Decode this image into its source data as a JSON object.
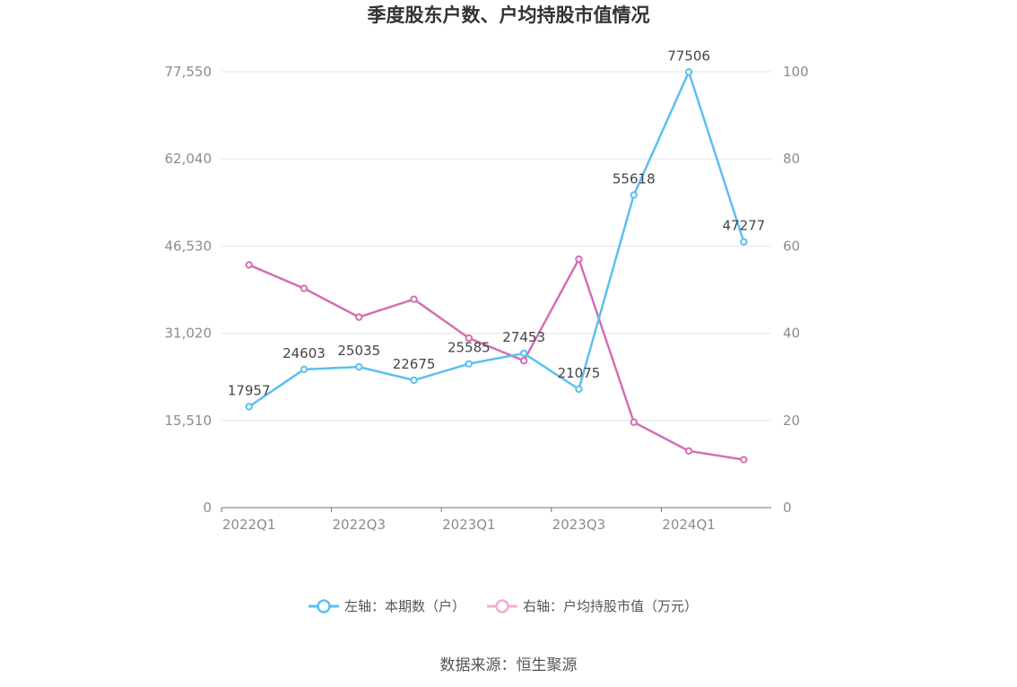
{
  "source_label": "数据来源：恒生聚源",
  "chart_data": {
    "type": "line",
    "title": "季度股东户数、户均持股市值情况",
    "categories": [
      "2022Q1",
      "2022Q2",
      "2022Q3",
      "2022Q4",
      "2023Q1",
      "2023Q2",
      "2023Q3",
      "2023Q4",
      "2024Q1",
      "2024Q2"
    ],
    "x_tick_labels": [
      "2022Q1",
      "2022Q3",
      "2023Q1",
      "2023Q3",
      "2024Q1"
    ],
    "y_left": {
      "range": [
        0,
        77550
      ],
      "ticks": [
        "0",
        "15,510",
        "31,020",
        "46,530",
        "62,040",
        "77,550"
      ]
    },
    "y_right": {
      "range": [
        0,
        100
      ],
      "ticks": [
        "0",
        "20",
        "40",
        "60",
        "80",
        "100"
      ]
    },
    "grid": true,
    "legend_position": "bottom-center",
    "series": [
      {
        "name": "左轴：本期数（户）",
        "axis": "left",
        "color": "#5bc0ef",
        "values": [
          17957,
          24603,
          25035,
          22675,
          25585,
          27453,
          21075,
          55618,
          77506,
          47277
        ],
        "labels": [
          "17957",
          "24603",
          "25035",
          "22675",
          "25585",
          "27453",
          "21075",
          "55618",
          "77506",
          "47277"
        ]
      },
      {
        "name": "右轴：户均持股市值（万元）",
        "axis": "right",
        "color": "#d46fb5",
        "values": [
          55.7,
          50.3,
          43.7,
          47.8,
          38.9,
          33.7,
          57.0,
          19.6,
          13.0,
          11.0
        ]
      }
    ]
  }
}
